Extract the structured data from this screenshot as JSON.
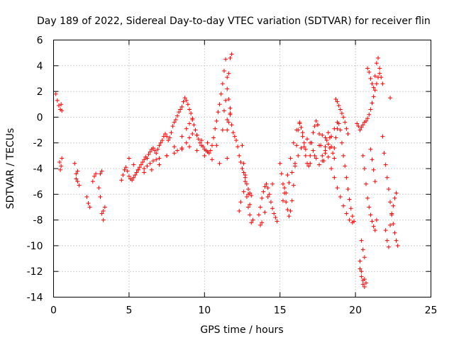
{
  "chart_data": {
    "type": "scatter",
    "title": "Day 189 of 2022, Sidereal Day-to-day VTEC variation (SDTVAR) for receiver flin",
    "xlabel": "GPS time / hours",
    "ylabel": "SDTVAR / TECUs",
    "xlim": [
      0,
      25
    ],
    "ylim": [
      -14,
      6
    ],
    "xticks": [
      0,
      5,
      10,
      15,
      20,
      25
    ],
    "yticks": [
      -14,
      -12,
      -10,
      -8,
      -6,
      -4,
      -2,
      0,
      2,
      4,
      6
    ],
    "xtick_labels": [
      "0",
      "5",
      "10",
      "15",
      "20",
      "25"
    ],
    "ytick_labels": [
      "-14",
      "-12",
      "-10",
      "-8",
      "-6",
      "-4",
      "-2",
      "0",
      "2",
      "4",
      "6"
    ],
    "grid": true,
    "marker": "+",
    "color": "#ff0000",
    "series": [
      {
        "name": "SDTVAR",
        "x": [
          0.15,
          0.25,
          0.35,
          0.45,
          0.5,
          0.55,
          0.4,
          0.45,
          0.5,
          0.55,
          1.4,
          1.5,
          1.6,
          1.7,
          1.5,
          1.6,
          2.2,
          2.3,
          2.4,
          2.6,
          2.7,
          2.8,
          3.0,
          3.1,
          3.2,
          3.3,
          3.1,
          3.2,
          3.3,
          3.4,
          4.5,
          4.6,
          4.7,
          4.8,
          4.9,
          5.0,
          5.1,
          5.2,
          5.3,
          5.4,
          5.5,
          5.6,
          5.7,
          5.8,
          5.9,
          6.0,
          6.1,
          6.2,
          6.3,
          6.4,
          6.5,
          6.6,
          6.7,
          6.8,
          6.9,
          7.0,
          7.1,
          7.2,
          7.3,
          7.4,
          7.5,
          7.6,
          7.7,
          7.8,
          7.9,
          8.0,
          8.1,
          8.2,
          8.3,
          8.4,
          8.5,
          8.6,
          8.7,
          8.8,
          8.9,
          9.0,
          9.1,
          9.2,
          9.3,
          9.4,
          9.5,
          9.6,
          9.7,
          9.8,
          9.9,
          10.0,
          10.1,
          10.2,
          10.3,
          10.4,
          10.5,
          10.6,
          10.7,
          10.8,
          10.9,
          11.0,
          11.1,
          11.2,
          11.3,
          11.4,
          11.5,
          11.6,
          11.7,
          11.8,
          11.9,
          12.0,
          12.1,
          12.2,
          12.3,
          12.4,
          12.5,
          12.6,
          12.7,
          12.8,
          12.9,
          13.0,
          13.1,
          6.0,
          6.2,
          6.4,
          6.6,
          6.8,
          7.0,
          7.5,
          8.0,
          8.5,
          9.0,
          9.5,
          10.0,
          10.5,
          11.0,
          11.5,
          5.0,
          5.3,
          5.6,
          6.0,
          6.5,
          7.0,
          7.5,
          8.0,
          8.5,
          8.8,
          9.0,
          9.2,
          8.2,
          8.5,
          8.8,
          9.0,
          9.2,
          9.5,
          9.8,
          10.2,
          10.8,
          11.2,
          11.5,
          11.7,
          11.3,
          11.4,
          11.5,
          11.6,
          11.7,
          11.8,
          11.5,
          11.6,
          11.7,
          12.5,
          12.6,
          12.7,
          12.8,
          12.9,
          13.0,
          13.1,
          13.2,
          12.7,
          12.9,
          13.0,
          12.3,
          12.4,
          12.6,
          13.6,
          13.7,
          13.8,
          13.9,
          14.0,
          14.1,
          14.2,
          14.3,
          14.4,
          14.5,
          14.6,
          14.7,
          14.8,
          13.7,
          13.8,
          14.0,
          14.2,
          14.5,
          15.0,
          15.1,
          15.2,
          15.3,
          15.4,
          15.5,
          15.6,
          15.7,
          15.8,
          15.9,
          16.0,
          16.1,
          16.2,
          16.3,
          16.4,
          16.5,
          16.6,
          16.7,
          16.8,
          16.9,
          17.0,
          17.1,
          17.2,
          17.3,
          17.4,
          17.5,
          17.6,
          17.7,
          17.8,
          17.9,
          18.0,
          18.1,
          18.2,
          18.3,
          18.4,
          18.5,
          18.6,
          18.7,
          18.8,
          18.9,
          19.0,
          19.1,
          19.2,
          19.3,
          19.4,
          19.5,
          19.6,
          19.7,
          19.8,
          19.9,
          15.3,
          15.5,
          15.7,
          15.9,
          16.1,
          16.3,
          16.5,
          16.7,
          17.0,
          17.3,
          17.6,
          18.0,
          18.3,
          18.6,
          15.2,
          15.4,
          15.6,
          15.8,
          16.0,
          16.2,
          16.4,
          16.6,
          16.8,
          17.0,
          17.2,
          17.4,
          17.6,
          17.8,
          18.0,
          18.2,
          18.4,
          18.6,
          18.8,
          17.5,
          17.8,
          18.0,
          18.2,
          18.4,
          18.6,
          18.8,
          19.0,
          19.2,
          19.4,
          19.6,
          19.8,
          18.7,
          18.8,
          18.9,
          19.0,
          19.1,
          19.2,
          19.3,
          19.4,
          19.5,
          20.1,
          20.2,
          20.3,
          20.4,
          20.5,
          20.6,
          20.7,
          20.8,
          20.9,
          21.0,
          21.1,
          21.2,
          21.3,
          21.4,
          21.5,
          21.6,
          20.3,
          20.4,
          20.5,
          20.6,
          20.7,
          20.3,
          20.4,
          20.5,
          20.6,
          20.4,
          20.5,
          20.6,
          20.5,
          20.6,
          20.7,
          20.8,
          20.9,
          21.0,
          21.1,
          21.2,
          21.3,
          21.4,
          21.0,
          21.1,
          21.2,
          21.3,
          20.8,
          20.9,
          21.0,
          21.1,
          21.2,
          21.3,
          21.4,
          21.5,
          21.6,
          21.7,
          21.8,
          21.9,
          22.0,
          22.1,
          22.2,
          22.3,
          22.4,
          22.5,
          22.6,
          22.7,
          22.8,
          22.3,
          22.4,
          22.5,
          22.6,
          22.7,
          22.0,
          22.1,
          22.2,
          21.8,
          22.3
        ],
        "y": [
          1.8,
          1.3,
          0.9,
          0.6,
          1.0,
          0.5,
          -3.5,
          -4.1,
          -3.8,
          -3.2,
          -3.6,
          -4.4,
          -5.0,
          -5.3,
          -4.8,
          -4.2,
          -6.2,
          -6.7,
          -7.0,
          -5.0,
          -4.6,
          -4.4,
          -5.5,
          -6.2,
          -7.5,
          -8.0,
          -4.4,
          -4.2,
          -7.3,
          -7.0,
          -4.9,
          -4.5,
          -4.1,
          -3.9,
          -4.2,
          -4.6,
          -4.8,
          -4.9,
          -4.7,
          -4.5,
          -4.3,
          -4.1,
          -3.9,
          -3.7,
          -3.5,
          -3.3,
          -3.1,
          -3.2,
          -2.9,
          -2.7,
          -2.5,
          -2.4,
          -2.6,
          -2.8,
          -2.5,
          -2.2,
          -2.0,
          -1.8,
          -1.5,
          -1.3,
          -1.5,
          -1.8,
          -1.6,
          -1.2,
          -0.7,
          -0.4,
          -0.2,
          0.1,
          0.4,
          0.6,
          0.8,
          1.2,
          1.5,
          1.3,
          1.0,
          0.6,
          0.3,
          -0.1,
          -0.6,
          -1.0,
          -1.4,
          -1.7,
          -2.0,
          -2.2,
          -2.3,
          -2.5,
          -2.6,
          -2.7,
          -2.8,
          -2.6,
          -2.2,
          -1.6,
          -0.9,
          -0.3,
          0.4,
          1.0,
          1.8,
          2.6,
          3.6,
          4.5,
          3.1,
          1.4,
          0.3,
          -0.6,
          -1.2,
          -1.5,
          -1.8,
          -2.3,
          -3.0,
          -3.5,
          -4.0,
          -4.3,
          -4.7,
          -5.2,
          -5.6,
          -5.9,
          -6.1,
          -4.0,
          -3.8,
          -3.6,
          -3.4,
          -3.3,
          -3.2,
          -3.0,
          -2.8,
          -2.5,
          -2.3,
          -2.6,
          -3.0,
          -3.3,
          -3.6,
          -3.2,
          -3.2,
          -3.7,
          -4.1,
          -4.3,
          -4.1,
          -3.7,
          -3.0,
          -2.3,
          -1.5,
          -0.9,
          -0.5,
          -0.2,
          -2.6,
          -2.4,
          -2.0,
          -1.6,
          -1.3,
          -1.4,
          -1.8,
          -2.0,
          -2.2,
          -1.0,
          -0.2,
          0.7,
          0.5,
          1.3,
          2.2,
          3.4,
          4.6,
          4.9,
          -1.0,
          -0.4,
          0.2,
          -2.2,
          -3.6,
          -5.0,
          -6.2,
          -7.0,
          -7.6,
          -8.2,
          -8.0,
          -4.5,
          -6.0,
          -6.8,
          -7.3,
          -6.6,
          -5.8,
          -7.6,
          -7.0,
          -6.3,
          -5.8,
          -5.4,
          -5.2,
          -5.5,
          -6.0,
          -6.6,
          -7.1,
          -7.5,
          -7.8,
          -8.1,
          -8.4,
          -8.2,
          -7.4,
          -6.2,
          -5.2,
          -3.6,
          -4.4,
          -5.2,
          -5.9,
          -6.6,
          -7.2,
          -7.7,
          -7.3,
          -6.5,
          -5.3,
          -3.8,
          -2.2,
          -1.0,
          -0.4,
          -0.8,
          -1.5,
          -2.3,
          -3.0,
          -3.6,
          -3.8,
          -3.0,
          -2.0,
          -1.2,
          -0.7,
          -0.3,
          -0.6,
          -1.3,
          -2.2,
          -3.0,
          -3.4,
          -2.6,
          -1.8,
          -1.2,
          -1.6,
          -2.3,
          -2.8,
          -2.4,
          -1.6,
          -0.9,
          -0.5,
          -1.0,
          -2.0,
          -3.0,
          -3.8,
          -4.7,
          -5.6,
          -6.4,
          -7.1,
          -7.7,
          -8.1,
          -5.5,
          -4.5,
          -3.2,
          -2.0,
          -1.0,
          -0.5,
          -1.2,
          -2.5,
          -3.6,
          -3.0,
          -2.2,
          -1.6,
          -2.4,
          -3.2,
          -6.5,
          -5.9,
          -5.1,
          -4.3,
          -3.6,
          -3.0,
          -2.4,
          -2.0,
          -1.7,
          -2.0,
          -2.6,
          -3.2,
          -3.7,
          -3.4,
          -2.8,
          -2.1,
          -1.5,
          -0.9,
          -0.4,
          -0.6,
          -1.4,
          -2.3,
          -3.1,
          -4.0,
          -4.7,
          -5.5,
          -6.2,
          -6.9,
          -7.5,
          -8.0,
          -8.2,
          1.4,
          1.2,
          0.9,
          0.6,
          0.3,
          0.0,
          -0.4,
          -0.9,
          -1.3,
          -0.5,
          -0.7,
          -1.0,
          -0.8,
          -0.6,
          -0.4,
          -0.3,
          -0.1,
          0.2,
          0.6,
          1.1,
          1.6,
          2.1,
          2.6,
          3.1,
          3.4,
          -11.2,
          -12.0,
          -12.7,
          -13.2,
          -12.9,
          -11.8,
          -12.4,
          -13.0,
          -12.6,
          -9.6,
          -10.3,
          -10.9,
          -3.0,
          -4.0,
          -5.2,
          -6.3,
          -7.0,
          -7.6,
          -8.1,
          -8.5,
          -8.8,
          -8.0,
          -2.5,
          -3.3,
          -4.1,
          -5.0,
          3.8,
          3.5,
          3.0,
          2.6,
          2.3,
          3.2,
          4.2,
          4.6,
          3.8,
          3.1,
          2.6,
          -2.8,
          -3.7,
          -4.7,
          -5.6,
          -6.6,
          -7.5,
          -8.3,
          -9.0,
          -9.6,
          -10.0,
          -8.4,
          -7.6,
          -6.9,
          -6.3,
          -5.9,
          -8.8,
          -9.6,
          -10.1,
          -1.5,
          1.5
        ]
      }
    ]
  }
}
